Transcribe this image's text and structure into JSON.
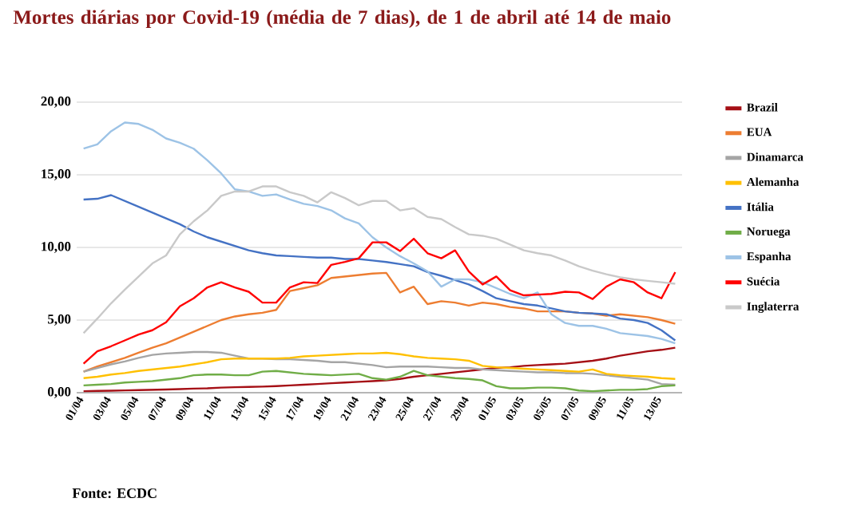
{
  "chart_data": {
    "type": "line",
    "title": "Mortes diárias por Covid-19 (média de 7 dias), de 1 de abril até 14 de maio",
    "categories": [
      "01/04",
      null,
      "03/04",
      null,
      "05/04",
      null,
      "07/04",
      null,
      "09/04",
      null,
      "11/04",
      null,
      "13/04",
      null,
      "15/04",
      null,
      "17/04",
      null,
      "19/04",
      null,
      "21/04",
      null,
      "23/04",
      null,
      "25/04",
      null,
      "27/04",
      null,
      "29/04",
      null,
      "01/05",
      null,
      "03/05",
      null,
      "05/05",
      null,
      "07/05",
      null,
      "09/05",
      null,
      "11/05",
      null,
      "13/05",
      null
    ],
    "ylim": [
      0,
      20
    ],
    "yticks": [
      {
        "value": 0,
        "label": "0,00"
      },
      {
        "value": 5,
        "label": "5,00"
      },
      {
        "value": 10,
        "label": "10,00"
      },
      {
        "value": 15,
        "label": "15,00"
      },
      {
        "value": 20,
        "label": "20,00"
      }
    ],
    "grid": "y",
    "legend": "right",
    "marker": "none",
    "line_style": "solid",
    "annotations": [
      "Fonte: ECDC"
    ],
    "series": [
      {
        "name": "Brazil",
        "color": "#a50f15",
        "values": [
          0.1,
          0.12,
          0.14,
          0.16,
          0.18,
          0.2,
          0.22,
          0.25,
          0.28,
          0.3,
          0.35,
          0.38,
          0.4,
          0.42,
          0.45,
          0.5,
          0.55,
          0.6,
          0.65,
          0.7,
          0.75,
          0.8,
          0.85,
          0.95,
          1.1,
          1.2,
          1.3,
          1.4,
          1.5,
          1.6,
          1.7,
          1.75,
          1.85,
          1.9,
          1.95,
          2.0,
          2.1,
          2.2,
          2.35,
          2.55,
          2.7,
          2.85,
          2.95,
          3.1
        ]
      },
      {
        "name": "EUA",
        "color": "#ed7d31",
        "values": [
          1.45,
          1.8,
          2.1,
          2.4,
          2.75,
          3.1,
          3.4,
          3.8,
          4.2,
          4.6,
          5.0,
          5.25,
          5.4,
          5.5,
          5.7,
          7.0,
          7.2,
          7.4,
          7.9,
          8.0,
          8.1,
          8.2,
          8.25,
          6.9,
          7.3,
          6.1,
          6.3,
          6.2,
          6.0,
          6.2,
          6.1,
          5.9,
          5.8,
          5.6,
          5.6,
          5.6,
          5.5,
          5.45,
          5.3,
          5.4,
          5.3,
          5.2,
          5.0,
          4.75
        ]
      },
      {
        "name": "Dinamarca",
        "color": "#a5a5a5",
        "values": [
          1.45,
          1.7,
          1.95,
          2.15,
          2.4,
          2.6,
          2.7,
          2.75,
          2.8,
          2.8,
          2.75,
          2.55,
          2.35,
          2.35,
          2.3,
          2.3,
          2.25,
          2.2,
          2.1,
          2.1,
          2.0,
          1.9,
          1.75,
          1.8,
          1.8,
          1.8,
          1.75,
          1.7,
          1.7,
          1.6,
          1.55,
          1.5,
          1.45,
          1.4,
          1.4,
          1.35,
          1.35,
          1.3,
          1.2,
          1.1,
          1.0,
          0.9,
          0.6,
          0.55
        ]
      },
      {
        "name": "Alemanha",
        "color": "#ffc000",
        "values": [
          1.0,
          1.1,
          1.25,
          1.35,
          1.5,
          1.6,
          1.7,
          1.8,
          1.95,
          2.1,
          2.3,
          2.35,
          2.35,
          2.35,
          2.35,
          2.4,
          2.5,
          2.55,
          2.6,
          2.65,
          2.7,
          2.7,
          2.75,
          2.65,
          2.5,
          2.4,
          2.35,
          2.3,
          2.2,
          1.85,
          1.75,
          1.7,
          1.65,
          1.6,
          1.55,
          1.5,
          1.45,
          1.6,
          1.3,
          1.2,
          1.15,
          1.1,
          1.0,
          0.95
        ]
      },
      {
        "name": "Itália",
        "color": "#4472c4",
        "values": [
          13.3,
          13.35,
          13.6,
          13.2,
          12.8,
          12.4,
          12.0,
          11.6,
          11.1,
          10.7,
          10.4,
          10.1,
          9.8,
          9.6,
          9.45,
          9.4,
          9.35,
          9.3,
          9.3,
          9.2,
          9.2,
          9.1,
          9.0,
          8.85,
          8.7,
          8.3,
          8.05,
          7.75,
          7.45,
          7.0,
          6.5,
          6.3,
          6.1,
          6.0,
          5.8,
          5.6,
          5.5,
          5.45,
          5.4,
          5.1,
          5.0,
          4.8,
          4.3,
          3.6
        ]
      },
      {
        "name": "Noruega",
        "color": "#70ad47",
        "values": [
          0.5,
          0.55,
          0.6,
          0.7,
          0.75,
          0.8,
          0.9,
          1.0,
          1.2,
          1.25,
          1.25,
          1.2,
          1.2,
          1.45,
          1.5,
          1.4,
          1.3,
          1.25,
          1.2,
          1.25,
          1.3,
          1.0,
          0.9,
          1.1,
          1.5,
          1.2,
          1.1,
          1.0,
          0.95,
          0.85,
          0.45,
          0.3,
          0.3,
          0.35,
          0.35,
          0.3,
          0.15,
          0.1,
          0.15,
          0.2,
          0.2,
          0.25,
          0.45,
          0.5
        ]
      },
      {
        "name": "Espanha",
        "color": "#9dc3e6",
        "values": [
          16.8,
          17.1,
          18.0,
          18.6,
          18.5,
          18.1,
          17.5,
          17.2,
          16.8,
          16.0,
          15.1,
          14.0,
          13.85,
          13.55,
          13.65,
          13.3,
          13.0,
          12.85,
          12.55,
          12.0,
          11.65,
          10.7,
          10.0,
          9.4,
          8.9,
          8.35,
          7.3,
          7.8,
          7.8,
          7.6,
          7.2,
          6.8,
          6.5,
          6.9,
          5.4,
          4.8,
          4.6,
          4.6,
          4.4,
          4.1,
          4.0,
          3.9,
          3.7,
          3.4
        ]
      },
      {
        "name": "Suécia",
        "color": "#ff0000",
        "values": [
          2.0,
          2.85,
          3.2,
          3.6,
          4.0,
          4.3,
          4.85,
          5.95,
          6.5,
          7.25,
          7.6,
          7.25,
          6.95,
          6.2,
          6.2,
          7.25,
          7.6,
          7.55,
          8.8,
          9.0,
          9.25,
          10.35,
          10.35,
          9.75,
          10.6,
          9.6,
          9.25,
          9.8,
          8.35,
          7.45,
          8.0,
          7.05,
          6.7,
          6.75,
          6.8,
          6.95,
          6.9,
          6.45,
          7.3,
          7.8,
          7.6,
          6.9,
          6.5,
          8.3
        ]
      },
      {
        "name": "Inglaterra",
        "color": "#c9c9c9",
        "values": [
          4.1,
          5.1,
          6.15,
          7.1,
          8.0,
          8.9,
          9.45,
          10.9,
          11.8,
          12.55,
          13.55,
          13.85,
          13.85,
          14.2,
          14.2,
          13.8,
          13.55,
          13.1,
          13.8,
          13.4,
          12.9,
          13.2,
          13.2,
          12.55,
          12.7,
          12.1,
          11.95,
          11.4,
          10.9,
          10.8,
          10.6,
          10.2,
          9.8,
          9.6,
          9.45,
          9.1,
          8.7,
          8.4,
          8.15,
          7.95,
          7.8,
          7.7,
          7.6,
          7.5
        ]
      }
    ]
  }
}
